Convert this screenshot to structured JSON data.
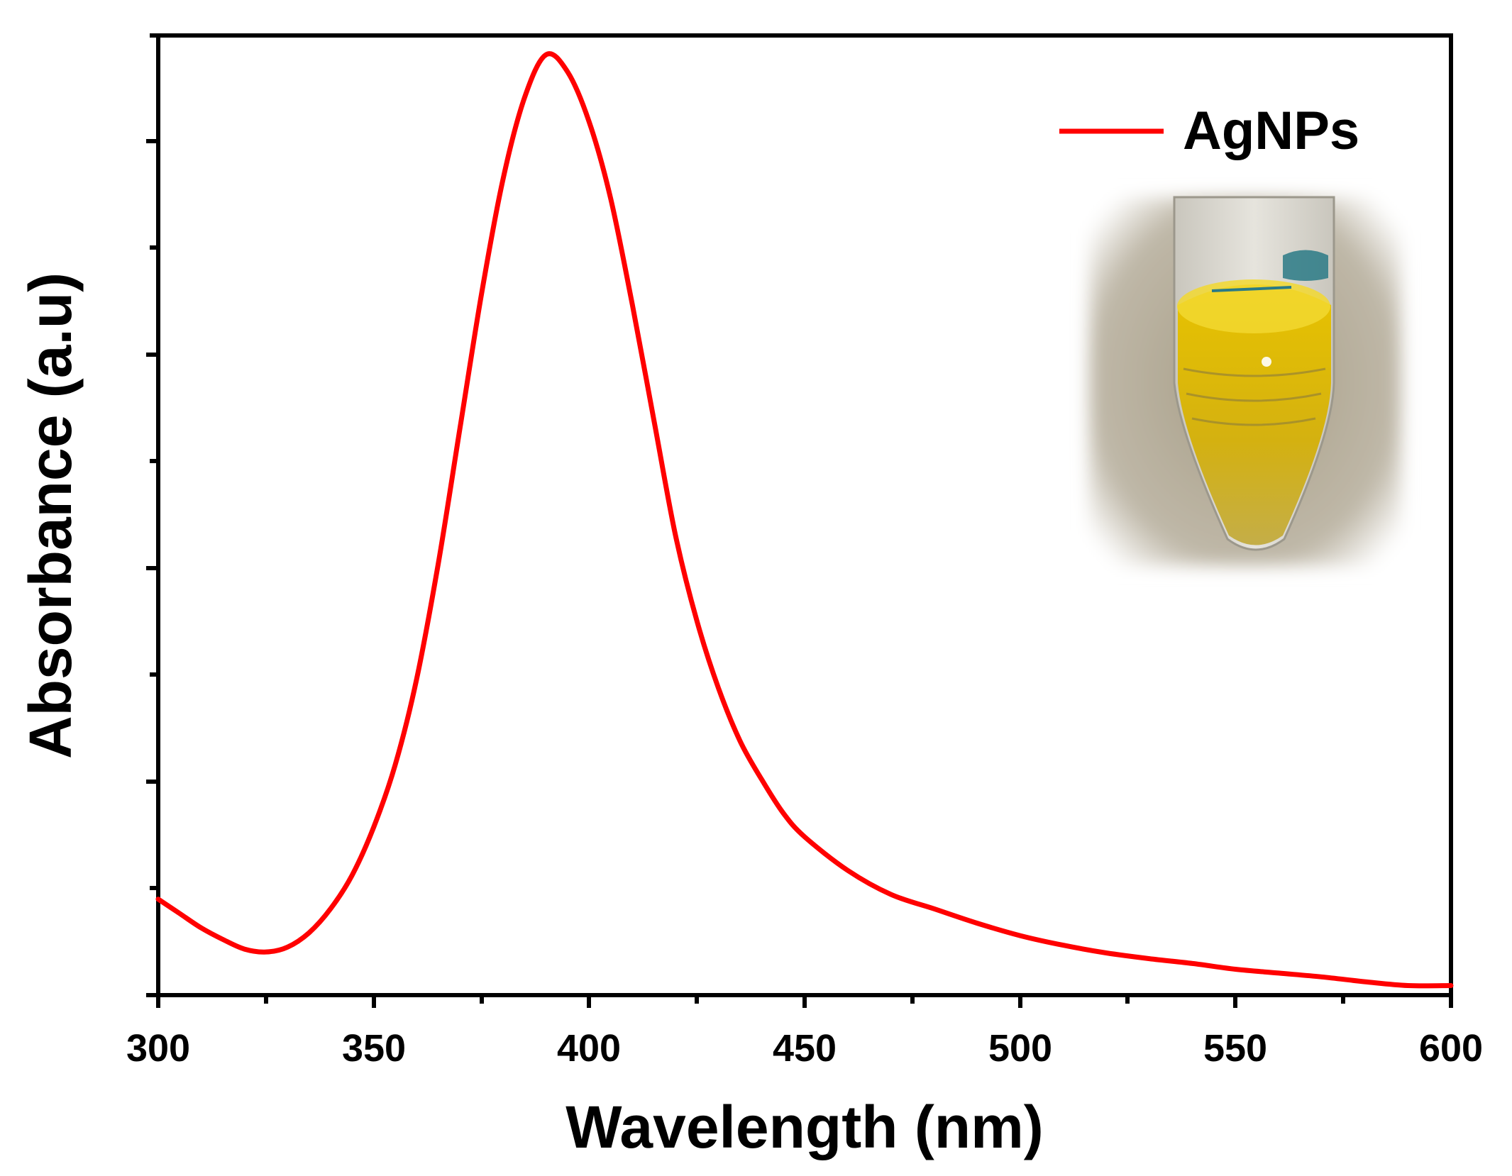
{
  "chart_data": {
    "type": "line",
    "title": "",
    "xlabel": "Wavelength (nm)",
    "ylabel": "Absorbance (a.u)",
    "xlim": [
      300,
      600
    ],
    "ylim": [
      0,
      1.0
    ],
    "x_ticks": [
      300,
      350,
      400,
      450,
      500,
      550,
      600
    ],
    "x_tick_labels": [
      "300",
      "350",
      "400",
      "450",
      "500",
      "550",
      "600"
    ],
    "y_tick_labels_shown": false,
    "grid": false,
    "legend": {
      "placement": "top-right",
      "entries": [
        "AgNPs"
      ]
    },
    "inset": "photo of tube with yellow solution",
    "series": [
      {
        "name": "AgNPs",
        "color": "#ff0000",
        "x": [
          300,
          305,
          310,
          315,
          320,
          325,
          330,
          335,
          340,
          345,
          350,
          355,
          360,
          365,
          370,
          375,
          380,
          385,
          390,
          395,
          400,
          405,
          410,
          415,
          420,
          425,
          430,
          435,
          440,
          445,
          450,
          460,
          470,
          480,
          490,
          500,
          510,
          520,
          530,
          540,
          550,
          560,
          570,
          580,
          590,
          600
        ],
        "y": [
          0.1,
          0.085,
          0.07,
          0.058,
          0.048,
          0.045,
          0.05,
          0.065,
          0.09,
          0.125,
          0.175,
          0.24,
          0.33,
          0.45,
          0.59,
          0.73,
          0.85,
          0.935,
          0.98,
          0.962,
          0.91,
          0.83,
          0.72,
          0.6,
          0.48,
          0.39,
          0.32,
          0.265,
          0.225,
          0.19,
          0.165,
          0.13,
          0.105,
          0.09,
          0.075,
          0.062,
          0.052,
          0.044,
          0.038,
          0.033,
          0.027,
          0.023,
          0.019,
          0.014,
          0.01,
          0.01
        ]
      }
    ]
  }
}
